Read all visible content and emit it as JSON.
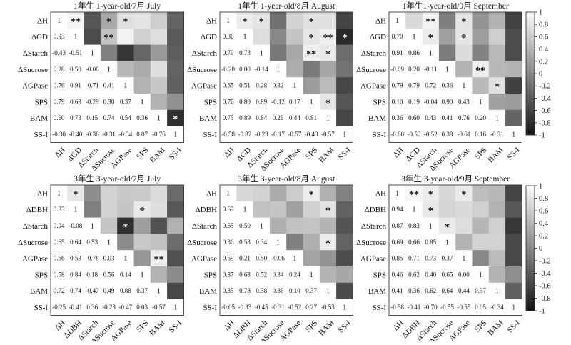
{
  "colorbar": {
    "ticks": [
      "1",
      "0.8",
      "0.6",
      "0.4",
      "0.2",
      "0",
      "-0.2",
      "-0.4",
      "-0.6",
      "-0.8",
      "-1"
    ]
  },
  "chart_data": [
    {
      "type": "heatmap",
      "title": "1年生 1-year-old/7月 July",
      "variables": [
        "ΔH",
        "ΔGD",
        "ΔStarch",
        "ΔSucrose",
        "AGPase",
        "SPS",
        "BAM",
        "SS-I"
      ],
      "lower_triangle_values": [
        [],
        [
          0.93
        ],
        [
          -0.43,
          -0.51
        ],
        [
          0.28,
          0.5,
          -0.06
        ],
        [
          0.76,
          0.91,
          -0.71,
          0.41
        ],
        [
          0.79,
          0.63,
          -0.29,
          0.3,
          0.37
        ],
        [
          0.6,
          0.73,
          0.15,
          0.74,
          0.54,
          0.36
        ],
        [
          -0.3,
          -0.4,
          -0.36,
          -0.31,
          -0.34,
          0.07,
          -0.76
        ]
      ],
      "value_labels": [
        [],
        [
          "0.93"
        ],
        [
          "-0.43",
          "-0.51"
        ],
        [
          "0.28",
          "0.50",
          "-0.06"
        ],
        [
          "0.76",
          "0.91",
          "-0.71",
          "0.41"
        ],
        [
          "0.79",
          "0.63",
          "-0.29",
          "0.30",
          "0.37"
        ],
        [
          "0.60",
          "0.73",
          "0.15",
          "0.74",
          "0.54",
          "0.36"
        ],
        [
          "-0.30",
          "-0.40",
          "-0.36",
          "-0.31",
          "-0.34",
          "0.07",
          "-0.76"
        ]
      ],
      "upper_marks": [
        {
          "row": 0,
          "col": 1,
          "mark": "**"
        },
        {
          "row": 0,
          "col": 3,
          "mark": "*"
        },
        {
          "row": 0,
          "col": 4,
          "mark": "*"
        },
        {
          "row": 1,
          "col": 3,
          "mark": "**"
        },
        {
          "row": 6,
          "col": 7,
          "mark": "*"
        }
      ],
      "diagonal": 1,
      "color_scale": [
        -1,
        1
      ]
    },
    {
      "type": "heatmap",
      "title": "1年生 1-year-old/8月 August",
      "variables": [
        "ΔH",
        "ΔGD",
        "ΔStarch",
        "ΔSucrose",
        "AGPase",
        "SPS",
        "BAM",
        "SS-I"
      ],
      "lower_triangle_values": [
        [],
        [
          0.86
        ],
        [
          0.79,
          0.73
        ],
        [
          -0.2,
          0.0,
          -0.14
        ],
        [
          0.65,
          0.51,
          0.28,
          0.32
        ],
        [
          0.76,
          0.8,
          0.89,
          -0.12,
          0.17
        ],
        [
          0.75,
          0.89,
          0.84,
          0.26,
          0.44,
          0.81
        ],
        [
          -0.58,
          -0.82,
          -0.23,
          -0.17,
          -0.57,
          -0.43,
          -0.57
        ]
      ],
      "value_labels": [
        [],
        [
          "0.86"
        ],
        [
          "0.79",
          "0.73"
        ],
        [
          "-0.20",
          "0.00",
          "-0.14"
        ],
        [
          "0.65",
          "0.51",
          "0.28",
          "0.32"
        ],
        [
          "0.76",
          "0.80",
          "0.89",
          "-0.12",
          "0.17"
        ],
        [
          "0.75",
          "0.89",
          "0.84",
          "0.26",
          "0.44",
          "0.81"
        ],
        [
          "-0.58",
          "-0.82",
          "-0.23",
          "-0.17",
          "-0.57",
          "-0.43",
          "-0.57"
        ]
      ],
      "upper_marks": [
        {
          "row": 0,
          "col": 1,
          "mark": "*"
        },
        {
          "row": 0,
          "col": 2,
          "mark": "*"
        },
        {
          "row": 0,
          "col": 5,
          "mark": "*"
        },
        {
          "row": 1,
          "col": 5,
          "mark": "*"
        },
        {
          "row": 1,
          "col": 6,
          "mark": "**"
        },
        {
          "row": 1,
          "col": 7,
          "mark": "*"
        },
        {
          "row": 2,
          "col": 5,
          "mark": "**"
        },
        {
          "row": 2,
          "col": 6,
          "mark": "*"
        },
        {
          "row": 5,
          "col": 6,
          "mark": "*"
        }
      ],
      "diagonal": 1,
      "color_scale": [
        -1,
        1
      ]
    },
    {
      "type": "heatmap",
      "title": "1年生1-year-old/9月 September",
      "variables": [
        "ΔH",
        "ΔGD",
        "ΔStarch",
        "ΔSucrose",
        "AGPase",
        "SPS",
        "BAM",
        "SS-I"
      ],
      "lower_triangle_values": [
        [],
        [
          0.7
        ],
        [
          0.91,
          0.86
        ],
        [
          -0.09,
          0.2,
          -0.11
        ],
        [
          0.79,
          0.79,
          0.72,
          0.36
        ],
        [
          0.1,
          0.19,
          -0.04,
          0.9,
          0.43
        ],
        [
          0.36,
          0.6,
          0.43,
          0.41,
          0.76,
          0.2
        ],
        [
          -0.6,
          -0.5,
          -0.52,
          0.38,
          -0.61,
          0.16,
          -0.31
        ]
      ],
      "value_labels": [
        [],
        [
          "0.70"
        ],
        [
          "0.91",
          "0.86"
        ],
        [
          "-0.09",
          "0.20",
          "-0.11"
        ],
        [
          "0.79",
          "0.79",
          "0.72",
          "0.36"
        ],
        [
          "0.10",
          "0.19",
          "-0.04",
          "0.90",
          "0.43"
        ],
        [
          "0.36",
          "0.60",
          "0.43",
          "0.41",
          "0.76",
          "0.20"
        ],
        [
          "-0.60",
          "-0.50",
          "-0.52",
          "0.38",
          "-0.61",
          "0.16",
          "-0.31"
        ]
      ],
      "upper_marks": [
        {
          "row": 0,
          "col": 2,
          "mark": "**"
        },
        {
          "row": 0,
          "col": 4,
          "mark": "*"
        },
        {
          "row": 1,
          "col": 2,
          "mark": "*"
        },
        {
          "row": 1,
          "col": 4,
          "mark": "*"
        },
        {
          "row": 3,
          "col": 5,
          "mark": "**"
        },
        {
          "row": 4,
          "col": 6,
          "mark": "*"
        }
      ],
      "diagonal": 1,
      "color_scale": [
        -1,
        1
      ]
    },
    {
      "type": "heatmap",
      "title": "3年生 3-year-old/7月 July",
      "variables": [
        "ΔH",
        "ΔDBH",
        "ΔStarch",
        "ΔSucrose",
        "AGPase",
        "SPS",
        "BAM",
        "SS-I"
      ],
      "lower_triangle_values": [
        [],
        [
          0.83
        ],
        [
          0.04,
          -0.08
        ],
        [
          0.65,
          0.64,
          0.53
        ],
        [
          0.56,
          0.53,
          -0.78,
          0.03
        ],
        [
          0.58,
          0.84,
          0.18,
          0.56,
          0.14
        ],
        [
          0.72,
          0.74,
          -0.47,
          0.49,
          0.88,
          0.37
        ],
        [
          -0.25,
          -0.41,
          0.36,
          -0.23,
          -0.47,
          0.03,
          -0.57
        ]
      ],
      "value_labels": [
        [],
        [
          "0.83"
        ],
        [
          "0.04",
          "-0.08"
        ],
        [
          "0.65",
          "0.64",
          "0.53"
        ],
        [
          "0.56",
          "0.53",
          "-0.78",
          "0.03"
        ],
        [
          "0.58",
          "0.84",
          "0.18",
          "0.56",
          "0.14"
        ],
        [
          "0.72",
          "0.74",
          "-0.47",
          "0.49",
          "0.88",
          "0.37"
        ],
        [
          "-0.25",
          "-0.41",
          "0.36",
          "-0.23",
          "-0.47",
          "0.03",
          "-0.57"
        ]
      ],
      "upper_marks": [
        {
          "row": 0,
          "col": 1,
          "mark": "*"
        },
        {
          "row": 1,
          "col": 5,
          "mark": "*"
        },
        {
          "row": 2,
          "col": 4,
          "mark": "*"
        },
        {
          "row": 4,
          "col": 6,
          "mark": "**"
        }
      ],
      "diagonal": 1,
      "color_scale": [
        -1,
        1
      ]
    },
    {
      "type": "heatmap",
      "title": "3年生 3-year-old/8月 August",
      "variables": [
        "ΔH",
        "ΔDBH",
        "ΔStarch",
        "ΔSucrose",
        "AGPase",
        "SPS",
        "BAM",
        "SS-I"
      ],
      "lower_triangle_values": [
        [],
        [
          0.69
        ],
        [
          0.65,
          0.5
        ],
        [
          0.3,
          0.53,
          0.34
        ],
        [
          0.59,
          0.21,
          0.5,
          -0.06
        ],
        [
          0.87,
          0.63,
          0.52,
          0.34,
          0.24
        ],
        [
          0.35,
          0.78,
          0.38,
          0.86,
          0.1,
          0.37
        ],
        [
          -0.05,
          -0.33,
          -0.45,
          -0.31,
          -0.52,
          0.27,
          -0.53
        ]
      ],
      "value_labels": [
        [],
        [
          "0.69"
        ],
        [
          "0.65",
          "0.50"
        ],
        [
          "0.30",
          "0.53",
          "0.34"
        ],
        [
          "0.59",
          "0.21",
          "0.50",
          "-0.06"
        ],
        [
          "0.87",
          "0.63",
          "0.52",
          "0.34",
          "0.24"
        ],
        [
          "0.35",
          "0.78",
          "0.38",
          "0.86",
          "0.10",
          "0.37"
        ],
        [
          "-0.05",
          "-0.33",
          "-0.45",
          "-0.31",
          "-0.52",
          "0.27",
          "-0.53"
        ]
      ],
      "upper_marks": [
        {
          "row": 0,
          "col": 5,
          "mark": "*"
        },
        {
          "row": 1,
          "col": 6,
          "mark": "*"
        },
        {
          "row": 3,
          "col": 6,
          "mark": "*"
        }
      ],
      "diagonal": 1,
      "color_scale": [
        -1,
        1
      ]
    },
    {
      "type": "heatmap",
      "title": "3年生 3-year-old/9月 September",
      "variables": [
        "ΔH",
        "ΔDBH",
        "ΔStarch",
        "ΔSucrose",
        "AGPase",
        "SPS",
        "BAM",
        "SS-I"
      ],
      "lower_triangle_values": [
        [],
        [
          0.94
        ],
        [
          0.87,
          0.83
        ],
        [
          0.69,
          0.66,
          0.85
        ],
        [
          0.85,
          0.71,
          0.73,
          0.37
        ],
        [
          0.46,
          0.62,
          0.4,
          0.65,
          0.0
        ],
        [
          0.41,
          0.36,
          0.62,
          0.64,
          0.44,
          0.37
        ],
        [
          -0.58,
          -0.41,
          -0.7,
          -0.55,
          -0.55,
          0.05,
          -0.34
        ]
      ],
      "value_labels": [
        [],
        [
          "0.94"
        ],
        [
          "0.87",
          "0.83"
        ],
        [
          "0.69",
          "0.66",
          "0.85"
        ],
        [
          "0.85",
          "0.71",
          "0.73",
          "0.37"
        ],
        [
          "0.46",
          "0.62",
          "0.40",
          "0.65",
          "0.00"
        ],
        [
          "0.41",
          "0.36",
          "0.62",
          "0.64",
          "0.44",
          "0.37"
        ],
        [
          "-0.58",
          "-0.41",
          "-0.70",
          "-0.55",
          "-0.55",
          "0.05",
          "-0.34"
        ]
      ],
      "upper_marks": [
        {
          "row": 0,
          "col": 1,
          "mark": "**"
        },
        {
          "row": 0,
          "col": 2,
          "mark": "*"
        },
        {
          "row": 0,
          "col": 4,
          "mark": "*"
        },
        {
          "row": 1,
          "col": 2,
          "mark": "*"
        },
        {
          "row": 2,
          "col": 3,
          "mark": "*"
        }
      ],
      "diagonal": 1,
      "color_scale": [
        -1,
        1
      ]
    }
  ]
}
